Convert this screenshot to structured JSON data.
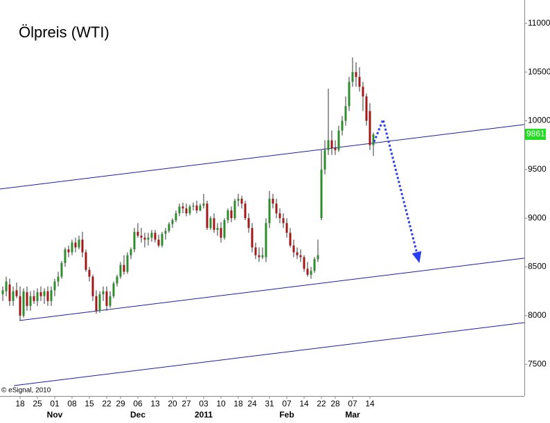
{
  "chart_data": {
    "type": "candlestick",
    "title": "Ölpreis (WTI)",
    "source": "© eSignal, 2010",
    "categories": [
      null,
      null,
      null,
      null,
      null,
      "18",
      null,
      null,
      null,
      null,
      "25",
      null,
      null,
      null,
      null,
      "01",
      null,
      null,
      null,
      null,
      "08",
      null,
      null,
      null,
      null,
      "15",
      null,
      null,
      null,
      null,
      "22",
      null,
      null,
      null,
      "29",
      null,
      null,
      null,
      null,
      "06",
      null,
      null,
      null,
      null,
      "13",
      null,
      null,
      null,
      null,
      "20",
      null,
      null,
      null,
      "27",
      null,
      null,
      null,
      null,
      "03",
      null,
      null,
      null,
      null,
      "10",
      null,
      null,
      null,
      null,
      "18",
      null,
      null,
      null,
      "24",
      null,
      null,
      null,
      null,
      "31",
      null,
      null,
      null,
      null,
      "07",
      null,
      null,
      null,
      null,
      "14",
      null,
      null,
      null,
      null,
      "22",
      null,
      null,
      null,
      "28",
      null,
      null,
      null,
      null,
      "07",
      null,
      null,
      null,
      null,
      "14",
      null
    ],
    "months": [
      "Nov",
      "Dec",
      "2011",
      "Feb",
      "Mar"
    ],
    "open": [
      8220,
      8250,
      8320,
      8150,
      8260,
      8200,
      8000,
      8240,
      8100,
      8200,
      8150,
      8240,
      8200,
      8250,
      8150,
      8260,
      8350,
      8400,
      8540,
      8680,
      8650,
      8750,
      8700,
      8780,
      8650,
      8470,
      8400,
      8200,
      8050,
      8220,
      8250,
      8100,
      8200,
      8330,
      8400,
      8520,
      8450,
      8620,
      8680,
      8860,
      8820,
      8800,
      8780,
      8800,
      8850,
      8780,
      8720,
      8840,
      8870,
      8940,
      8980,
      9050,
      9120,
      9100,
      9050,
      9120,
      9130,
      9080,
      9130,
      9150,
      8900,
      9000,
      8880,
      8900,
      8800,
      8980,
      9080,
      9000,
      9180,
      9200,
      9150,
      9000,
      8900,
      8700,
      8620,
      8600,
      8600,
      8950,
      9200,
      9150,
      9050,
      9000,
      8950,
      8850,
      8720,
      8650,
      8620,
      8600,
      8480,
      8420,
      8460,
      8580,
      9000,
      9500,
      9700,
      9800,
      9720,
      9700,
      9900,
      10000,
      10150,
      10400,
      10500,
      10450,
      10350,
      10250,
      10100,
      9750
    ],
    "high": [
      8300,
      8400,
      8380,
      8300,
      8340,
      8300,
      8280,
      8300,
      8250,
      8260,
      8280,
      8300,
      8280,
      8300,
      8300,
      8380,
      8450,
      8560,
      8700,
      8720,
      8780,
      8800,
      8820,
      8860,
      8680,
      8500,
      8420,
      8260,
      8250,
      8300,
      8300,
      8250,
      8350,
      8420,
      8550,
      8620,
      8650,
      8700,
      8900,
      8950,
      8900,
      8850,
      8850,
      8880,
      8880,
      8830,
      8860,
      8900,
      8960,
      9000,
      9080,
      9150,
      9160,
      9150,
      9140,
      9160,
      9180,
      9150,
      9250,
      9180,
      9020,
      9050,
      8950,
      8960,
      9000,
      9100,
      9120,
      9200,
      9250,
      9230,
      9180,
      9050,
      8950,
      8750,
      8700,
      8700,
      9000,
      9280,
      9250,
      9200,
      9100,
      9050,
      9000,
      8900,
      8780,
      8700,
      8680,
      8620,
      8550,
      8500,
      8600,
      8780,
      9700,
      9800,
      10330,
      9900,
      9800,
      9950,
      10050,
      10250,
      10450,
      10650,
      10600,
      10550,
      10400,
      10280,
      10180,
      9880
    ],
    "low": [
      8150,
      8200,
      8100,
      8100,
      8180,
      7950,
      7980,
      8050,
      8050,
      8120,
      8100,
      8150,
      8120,
      8100,
      8100,
      8200,
      8300,
      8380,
      8500,
      8600,
      8620,
      8650,
      8680,
      8600,
      8450,
      8350,
      8150,
      8020,
      8030,
      8150,
      8050,
      8080,
      8180,
      8300,
      8380,
      8420,
      8430,
      8580,
      8650,
      8800,
      8750,
      8700,
      8720,
      8760,
      8750,
      8700,
      8700,
      8780,
      8850,
      8900,
      8960,
      9020,
      9050,
      9020,
      9030,
      9080,
      9050,
      9070,
      9100,
      8880,
      8880,
      8850,
      8820,
      8750,
      8780,
      8950,
      8960,
      8980,
      9120,
      9100,
      8980,
      8850,
      8650,
      8580,
      8550,
      8580,
      8550,
      8900,
      9100,
      9000,
      8950,
      8900,
      8800,
      8700,
      8600,
      8580,
      8550,
      8450,
      8400,
      8380,
      8440,
      8550,
      8980,
      9450,
      9650,
      9650,
      9650,
      9680,
      9850,
      9950,
      10100,
      10350,
      10350,
      10300,
      10100,
      9950,
      9700,
      9640
    ],
    "close": [
      8260,
      8350,
      8150,
      8250,
      8200,
      8000,
      8250,
      8100,
      8200,
      8150,
      8240,
      8200,
      8250,
      8150,
      8260,
      8350,
      8400,
      8540,
      8680,
      8650,
      8750,
      8700,
      8780,
      8650,
      8470,
      8400,
      8200,
      8050,
      8220,
      8250,
      8100,
      8200,
      8330,
      8400,
      8520,
      8450,
      8620,
      8680,
      8860,
      8820,
      8800,
      8780,
      8800,
      8850,
      8780,
      8720,
      8840,
      8870,
      8940,
      8980,
      9050,
      9120,
      9100,
      9050,
      9120,
      9130,
      9080,
      9130,
      9150,
      8900,
      9000,
      8880,
      8900,
      8800,
      8980,
      9080,
      9000,
      9180,
      9200,
      9150,
      9000,
      8900,
      8700,
      8620,
      8600,
      8620,
      8950,
      9200,
      9150,
      9050,
      9000,
      8950,
      8850,
      8720,
      8650,
      8620,
      8600,
      8480,
      8420,
      8460,
      8580,
      8620,
      9500,
      9700,
      9800,
      9720,
      9700,
      9900,
      10000,
      10150,
      10400,
      10500,
      10450,
      10350,
      10250,
      10000,
      9750,
      9861
    ],
    "up_color": "#2e8b2e",
    "down_color": "#a01818",
    "ylim": [
      7175,
      11240
    ],
    "yticks": [
      7500,
      8000,
      8500,
      9000,
      9500,
      10000,
      10500,
      11000
    ],
    "trend_lines": [
      {
        "start": [
          -0.8,
          9300
        ],
        "end": [
          150.6,
          9962
        ]
      },
      {
        "start": [
          4.8,
          7950
        ],
        "end": [
          150.6,
          8590
        ]
      },
      {
        "start": [
          3.2,
          7282
        ],
        "end": [
          150.6,
          7928
        ]
      }
    ],
    "trend_color": "#1a1aa8",
    "forecast_arrow": {
      "x": [
        107.2,
        109.8,
        120.2
      ],
      "y": [
        9784,
        10012,
        8554
      ],
      "color": "#2a3cf0"
    },
    "last_price_color": "#22dd22"
  }
}
